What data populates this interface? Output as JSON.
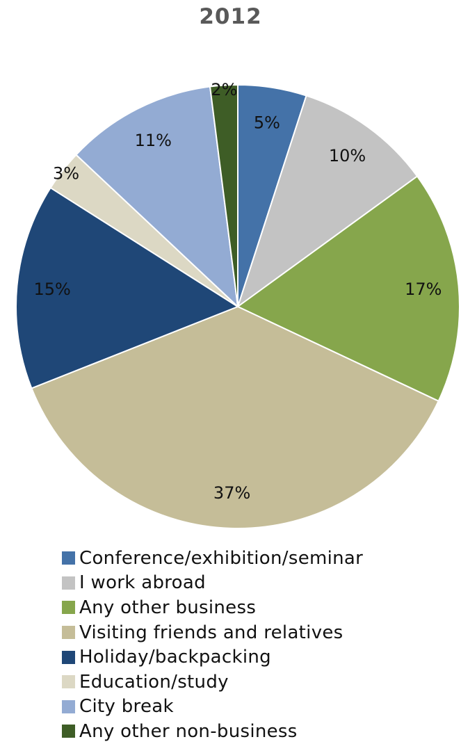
{
  "chart_data": {
    "type": "pie",
    "title": "2012",
    "categories": [
      "Conference/exhibition/seminar",
      "I work abroad",
      "Any other business",
      "Visiting friends and relatives",
      "Holiday/backpacking",
      "Education/study",
      "City break",
      "Any other non-business"
    ],
    "values": [
      5,
      10,
      17,
      37,
      15,
      3,
      11,
      2
    ],
    "value_labels": [
      "5%",
      "10%",
      "17%",
      "37%",
      "15%",
      "3%",
      "11%",
      "2%"
    ],
    "colors": [
      "#4472a8",
      "#c3c3c3",
      "#86a64c",
      "#c5bd98",
      "#1f4777",
      "#dcd8c4",
      "#93abd3",
      "#3e5d26"
    ],
    "legend_position": "bottom",
    "start_angle": "12 o'clock",
    "direction": "clockwise"
  }
}
